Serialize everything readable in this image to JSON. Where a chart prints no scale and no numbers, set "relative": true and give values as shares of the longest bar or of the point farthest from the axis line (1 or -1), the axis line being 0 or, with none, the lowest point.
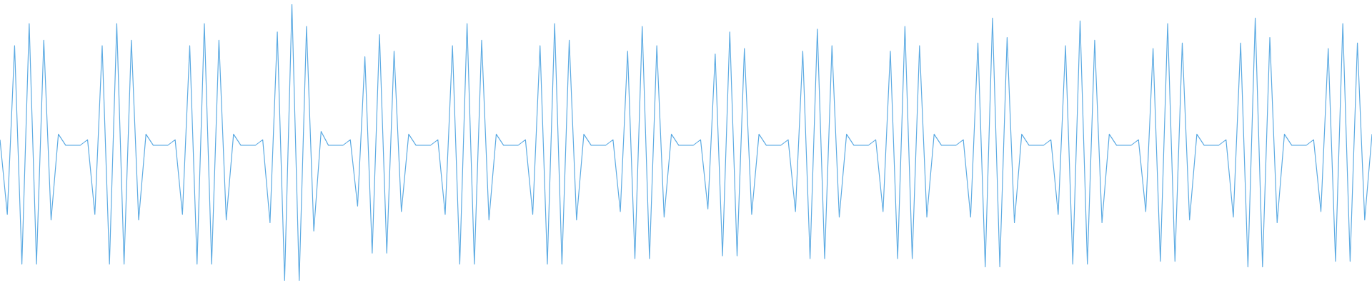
{
  "chart_data": {
    "type": "line",
    "relative": true,
    "legend": false,
    "categories": [
      null,
      null,
      null,
      null,
      null,
      null,
      null,
      null,
      null,
      null,
      null,
      null,
      null,
      null,
      null,
      null,
      null,
      null,
      null,
      null,
      null,
      null,
      null,
      null,
      null,
      null,
      null,
      null,
      null,
      null,
      null,
      null,
      null,
      null,
      null,
      null,
      null,
      null,
      null,
      null,
      null,
      null,
      null,
      null,
      null,
      null,
      null,
      null,
      null,
      null,
      null,
      null,
      null,
      null,
      null,
      null,
      null,
      null,
      null,
      null,
      null,
      null,
      null,
      null,
      null,
      null,
      null,
      null,
      null,
      null,
      null,
      null,
      null,
      null,
      null,
      null,
      null,
      null,
      null,
      null,
      null,
      null,
      null,
      null,
      null,
      null,
      null,
      null,
      null,
      null,
      null,
      null,
      null,
      null,
      null,
      null,
      null,
      null,
      null,
      null,
      null,
      null,
      null,
      null,
      null,
      null,
      null,
      null,
      null,
      null,
      null,
      null,
      null,
      null,
      null,
      null,
      null,
      null,
      null,
      null,
      null,
      null,
      null,
      null,
      null,
      null,
      null,
      null,
      null,
      null,
      null,
      null,
      null,
      null,
      null,
      null,
      null,
      null,
      null,
      null,
      null,
      null,
      null,
      null,
      null,
      null,
      null,
      null,
      null,
      null,
      null,
      null,
      null,
      null,
      null,
      null,
      null,
      null,
      null,
      null,
      null,
      null,
      null,
      null,
      null,
      null,
      null,
      null,
      null,
      null,
      null,
      null,
      null,
      null,
      null,
      null,
      null,
      null,
      null,
      null,
      null,
      null,
      null,
      null,
      null,
      null,
      null,
      null,
      null
    ],
    "series": [
      {
        "color": "#5dabe3",
        "values": [
          0.51,
          0.24,
          0.85,
          0.06,
          0.93,
          0.06,
          0.87,
          0.22,
          0.53,
          0.49,
          0.49,
          0.49,
          0.51,
          0.24,
          0.85,
          0.06,
          0.93,
          0.06,
          0.87,
          0.22,
          0.53,
          0.49,
          0.49,
          0.49,
          0.51,
          0.24,
          0.85,
          0.06,
          0.93,
          0.06,
          0.87,
          0.22,
          0.53,
          0.49,
          0.49,
          0.49,
          0.51,
          0.21,
          0.9,
          0,
          1,
          0,
          0.92,
          0.18,
          0.54,
          0.49,
          0.49,
          0.49,
          0.51,
          0.27,
          0.81,
          0.1,
          0.89,
          0.1,
          0.83,
          0.25,
          0.53,
          0.49,
          0.49,
          0.49,
          0.51,
          0.24,
          0.85,
          0.06,
          0.93,
          0.06,
          0.87,
          0.22,
          0.53,
          0.49,
          0.49,
          0.49,
          0.51,
          0.24,
          0.85,
          0.06,
          0.93,
          0.06,
          0.87,
          0.22,
          0.53,
          0.49,
          0.49,
          0.49,
          0.51,
          0.25,
          0.83,
          0.08,
          0.92,
          0.08,
          0.85,
          0.23,
          0.53,
          0.49,
          0.49,
          0.49,
          0.51,
          0.26,
          0.82,
          0.09,
          0.9,
          0.09,
          0.84,
          0.24,
          0.53,
          0.49,
          0.49,
          0.49,
          0.51,
          0.25,
          0.83,
          0.08,
          0.91,
          0.08,
          0.85,
          0.23,
          0.53,
          0.49,
          0.49,
          0.49,
          0.51,
          0.25,
          0.83,
          0.08,
          0.92,
          0.08,
          0.85,
          0.23,
          0.53,
          0.49,
          0.49,
          0.49,
          0.51,
          0.23,
          0.86,
          0.05,
          0.95,
          0.05,
          0.88,
          0.21,
          0.53,
          0.49,
          0.49,
          0.49,
          0.51,
          0.24,
          0.85,
          0.06,
          0.94,
          0.06,
          0.87,
          0.21,
          0.53,
          0.49,
          0.49,
          0.49,
          0.51,
          0.25,
          0.84,
          0.07,
          0.93,
          0.07,
          0.86,
          0.22,
          0.53,
          0.49,
          0.49,
          0.49,
          0.51,
          0.23,
          0.86,
          0.05,
          0.95,
          0.05,
          0.88,
          0.21,
          0.53,
          0.49,
          0.49,
          0.49,
          0.51,
          0.25,
          0.84,
          0.07,
          0.93,
          0.07,
          0.86,
          0.22,
          0.53
        ]
      }
    ]
  }
}
